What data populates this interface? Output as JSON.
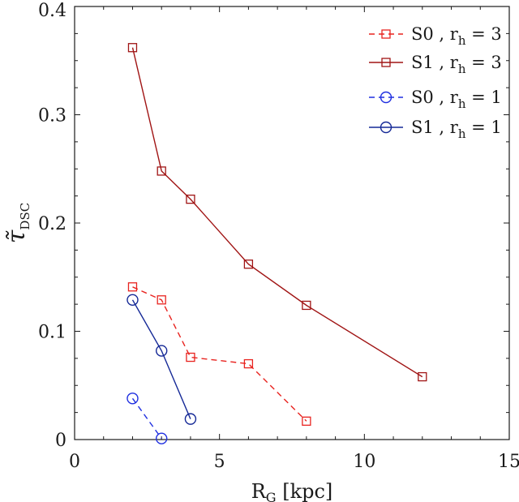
{
  "chart_data": {
    "type": "line",
    "xlabel": "R",
    "xlabel_sub": "G",
    "xlabel_unit": "[kpc]",
    "ylabel": "τ̃",
    "ylabel_sub": "DSC",
    "xlim": [
      0,
      15
    ],
    "ylim": [
      0,
      0.4
    ],
    "xticks": [
      0,
      5,
      10,
      15
    ],
    "xtick_labels": [
      "0",
      "5",
      "10",
      "15"
    ],
    "yticks": [
      0,
      0.1,
      0.2,
      0.3,
      0.4
    ],
    "ytick_labels": [
      "0",
      "0.1",
      "0.2",
      "0.3",
      "0.4"
    ],
    "grid": false,
    "legend_position": "top-right",
    "series": [
      {
        "name": "S0 , r_h = 3",
        "label_main": "S0 , r",
        "label_sub": "h",
        "label_tail": " = 3",
        "color": "#e8231f",
        "dash": "dashed",
        "marker": "square",
        "x": [
          2,
          3,
          4,
          6,
          8
        ],
        "y": [
          0.141,
          0.129,
          0.076,
          0.07,
          0.017
        ]
      },
      {
        "name": "S1 , r_h = 3",
        "label_main": "S1 , r",
        "label_sub": "h",
        "label_tail": " = 3",
        "color": "#a01414",
        "dash": "solid",
        "marker": "square",
        "x": [
          2,
          3,
          4,
          6,
          8,
          12
        ],
        "y": [
          0.362,
          0.248,
          0.222,
          0.162,
          0.124,
          0.058
        ]
      },
      {
        "name": "S0 , r_h = 1",
        "label_main": "S0 , r",
        "label_sub": "h",
        "label_tail": " = 1",
        "color": "#1f2fe0",
        "dash": "dashed",
        "marker": "circle",
        "x": [
          2,
          3
        ],
        "y": [
          0.038,
          0.001
        ]
      },
      {
        "name": "S1 , r_h = 1",
        "label_main": "S1 , r",
        "label_sub": "h",
        "label_tail": " = 1",
        "color": "#142896",
        "dash": "solid",
        "marker": "circle",
        "x": [
          2,
          3,
          4
        ],
        "y": [
          0.129,
          0.082,
          0.019
        ]
      }
    ]
  }
}
